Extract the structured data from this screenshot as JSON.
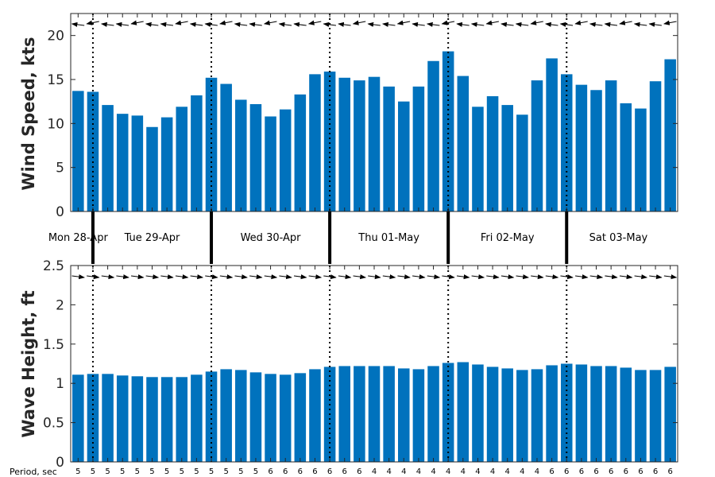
{
  "chart_data": [
    {
      "type": "bar",
      "ylabel": "Wind Speed, kts",
      "ylim": [
        0,
        22.5
      ],
      "yticks": [
        0,
        5,
        10,
        15,
        20
      ],
      "color": "#0072BD",
      "days": [
        "Mon 28-Apr",
        "Tue 29-Apr",
        "Wed 30-Apr",
        "Thu 01-May",
        "Fri 02-May",
        "Sat 03-May"
      ],
      "values": [
        13.7,
        13.6,
        12.1,
        11.1,
        10.9,
        9.6,
        10.7,
        11.9,
        13.2,
        15.2,
        14.5,
        12.7,
        12.2,
        10.8,
        11.6,
        13.3,
        15.6,
        15.9,
        15.2,
        14.9,
        15.3,
        14.2,
        12.5,
        14.2,
        17.1,
        18.2,
        15.4,
        11.9,
        13.1,
        12.1,
        11.0,
        14.9,
        17.4,
        15.6,
        14.4,
        13.8,
        14.9,
        12.3,
        11.7,
        14.8,
        17.3
      ],
      "direction_arrows": "pointing left (westward)"
    },
    {
      "type": "bar",
      "ylabel": "Wave Height, ft",
      "ylim": [
        0,
        2.5
      ],
      "yticks": [
        "0",
        "0.5",
        "1",
        "1.5",
        "2",
        "2.5"
      ],
      "color": "#0072BD",
      "values": [
        1.11,
        1.12,
        1.12,
        1.1,
        1.09,
        1.08,
        1.08,
        1.08,
        1.11,
        1.15,
        1.18,
        1.17,
        1.14,
        1.12,
        1.11,
        1.13,
        1.18,
        1.21,
        1.22,
        1.22,
        1.22,
        1.22,
        1.19,
        1.18,
        1.22,
        1.26,
        1.27,
        1.24,
        1.21,
        1.19,
        1.17,
        1.18,
        1.23,
        1.25,
        1.24,
        1.22,
        1.22,
        1.2,
        1.17,
        1.17,
        1.21
      ],
      "direction_arrows": "pointing right (eastward)",
      "period_label": "Period, sec",
      "periods": [
        "5",
        "5",
        "5",
        "5",
        "5",
        "5",
        "5",
        "5",
        "5",
        "5",
        "5",
        "5",
        "5",
        "6",
        "6",
        "6",
        "6",
        "6",
        "6",
        "6",
        "4",
        "4",
        "4",
        "4",
        "4",
        "4",
        "4",
        "4",
        "4",
        "4",
        "4",
        "4",
        "6",
        "6",
        "6",
        "6",
        "6",
        "6",
        "6",
        "6",
        "6"
      ]
    }
  ],
  "day_boundaries": [
    1.5,
    9.5,
    17.5,
    25.5,
    33.5
  ]
}
